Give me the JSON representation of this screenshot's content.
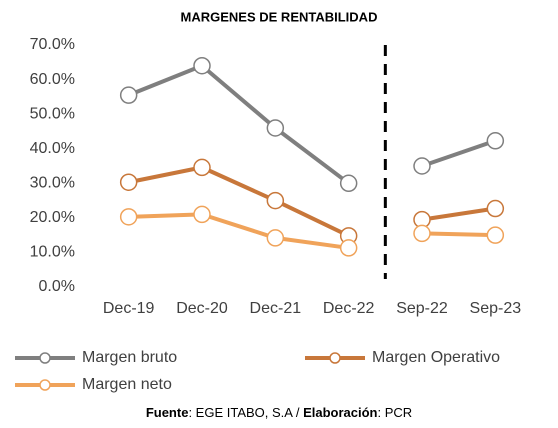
{
  "chart_data": {
    "type": "line",
    "title": "MARGENES DE RENTABILIDAD",
    "categories": [
      "Dec-19",
      "Dec-20",
      "Dec-21",
      "Dec-22",
      "Sep-22",
      "Sep-23"
    ],
    "series": [
      {
        "name": "Margen bruto",
        "color": "#7f7f7f",
        "values": [
          55.5,
          64.0,
          46.0,
          30.0,
          35.0,
          42.3
        ]
      },
      {
        "name": "Margen Operativo",
        "color": "#c8773a",
        "values": [
          30.3,
          34.6,
          25.0,
          14.8,
          19.5,
          22.7
        ]
      },
      {
        "name": "Margen neto",
        "color": "#f0a35a",
        "values": [
          20.3,
          21.0,
          14.2,
          11.3,
          15.5,
          15.0
        ]
      }
    ],
    "ylim": [
      0,
      70
    ],
    "yticks": [
      {
        "value": 0,
        "label": "0.0%"
      },
      {
        "value": 10,
        "label": "10.0%"
      },
      {
        "value": 20,
        "label": "20.0%"
      },
      {
        "value": 30,
        "label": "30.0%"
      },
      {
        "value": 40,
        "label": "40.0%"
      },
      {
        "value": 50,
        "label": "50.0%"
      },
      {
        "value": 60,
        "label": "60.0%"
      },
      {
        "value": 70,
        "label": "70.0%"
      }
    ],
    "grid": false,
    "divider_after": 3,
    "legend": "bottom",
    "footer": [
      "Fuente",
      ": EGE ITABO, S.A / ",
      "Elaboración",
      ": PCR"
    ]
  }
}
